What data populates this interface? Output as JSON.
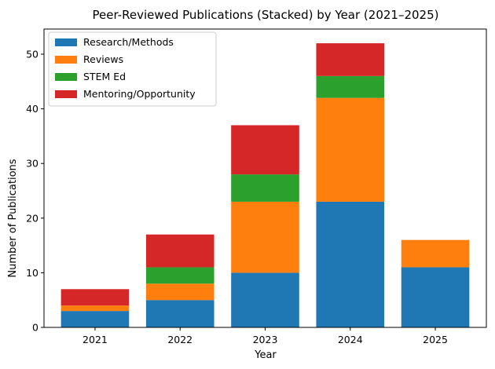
{
  "chart_data": {
    "type": "bar",
    "stacked": true,
    "title": "Peer-Reviewed Publications (Stacked) by Year (2021–2025)",
    "xlabel": "Year",
    "ylabel": "Number of Publications",
    "categories": [
      "2021",
      "2022",
      "2023",
      "2024",
      "2025"
    ],
    "series": [
      {
        "name": "Research/Methods",
        "values": [
          3,
          5,
          10,
          23,
          11
        ],
        "color": "#1f77b4"
      },
      {
        "name": "Reviews",
        "values": [
          1,
          3,
          13,
          19,
          5
        ],
        "color": "#ff7f0e"
      },
      {
        "name": "STEM Ed",
        "values": [
          0,
          3,
          5,
          4,
          0
        ],
        "color": "#2ca02c"
      },
      {
        "name": "Mentoring/Opportunity",
        "values": [
          3,
          6,
          9,
          6,
          0
        ],
        "color": "#d62728"
      }
    ],
    "ylim": [
      0,
      54.6
    ],
    "yticks": [
      0,
      10,
      20,
      30,
      40,
      50
    ],
    "grid": false,
    "legend": "top-left"
  }
}
